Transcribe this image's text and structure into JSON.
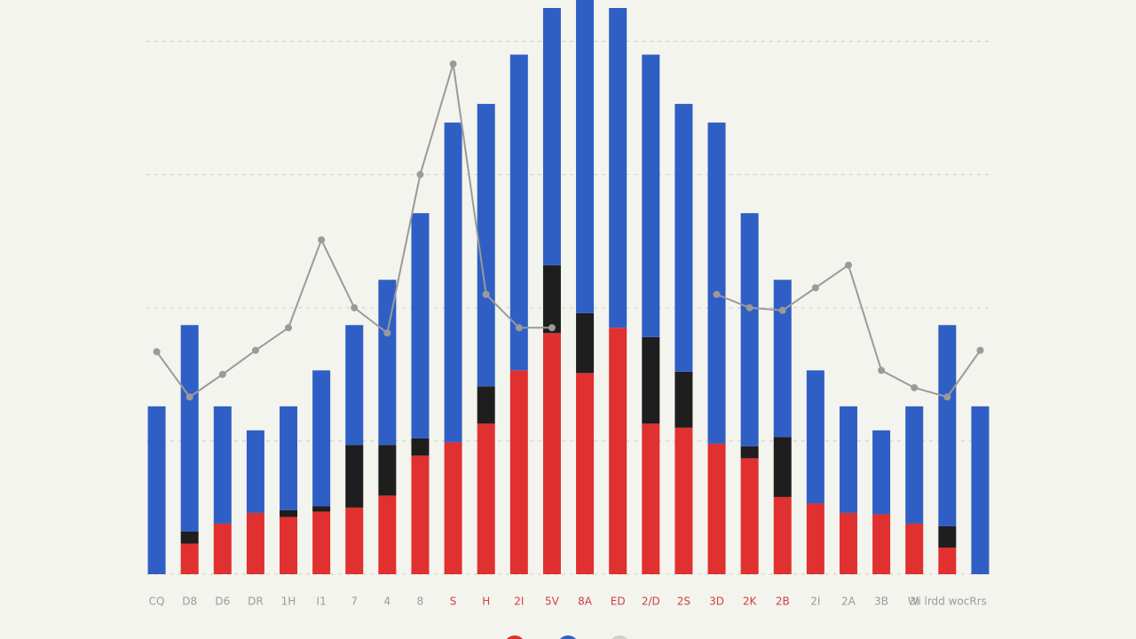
{
  "chart_data": {
    "type": "stacked-bar-line",
    "categories": [
      "CQ",
      "D8",
      "D6",
      "DR",
      "1H",
      "I1",
      "7",
      "4",
      "8",
      "S",
      "H",
      "2I",
      "5V",
      "8A",
      "ED",
      "2/D",
      "2S",
      "3D",
      "2K",
      "2B",
      "2I",
      "2A",
      "3B",
      "3I",
      "Wi lrdd wocRrs",
      null
    ],
    "series": [
      {
        "color": "#e03030",
        "values": [
          0,
          0.23,
          0.38,
          0.46,
          0.43,
          0.47,
          0.5,
          0.59,
          0.89,
          0.99,
          1.13,
          1.53,
          1.81,
          1.51,
          1.85,
          1.13,
          1.1,
          0.98,
          0.87,
          0.58,
          0.53,
          0.46,
          0.45,
          0.38,
          0.2,
          0
        ]
      },
      {
        "color": "#1e1e1e",
        "values": [
          0,
          0.09,
          0,
          0,
          0.05,
          0.04,
          0.47,
          0.38,
          0.13,
          0,
          0.28,
          0,
          0.51,
          0.45,
          0,
          0.65,
          0.42,
          0,
          0.09,
          0.45,
          0,
          0,
          0,
          0,
          0.16,
          0
        ]
      },
      {
        "color": "#2f5fc4",
        "values": [
          1.26,
          1.55,
          0.88,
          0.62,
          0.78,
          1.02,
          0.9,
          1.24,
          1.69,
          2.4,
          2.12,
          2.37,
          1.93,
          2.35,
          2.4,
          2.12,
          2.01,
          2.41,
          1.75,
          1.18,
          1.0,
          0.8,
          0.63,
          0.88,
          1.51,
          1.26
        ]
      },
      {
        "type": "line",
        "color": "#9a9a9a",
        "values": [
          1.67,
          1.33,
          1.5,
          1.68,
          1.85,
          2.51,
          2.0,
          1.81,
          3.0,
          3.83,
          2.1,
          1.85,
          1.85,
          null,
          null,
          null,
          null,
          2.1,
          2.0,
          1.98,
          2.15,
          2.32,
          1.53,
          1.4,
          1.33,
          1.68
        ]
      }
    ],
    "ylim": [
      0,
      4.31
    ],
    "yticks": [
      0,
      1,
      2,
      3,
      4
    ],
    "grid": true
  }
}
